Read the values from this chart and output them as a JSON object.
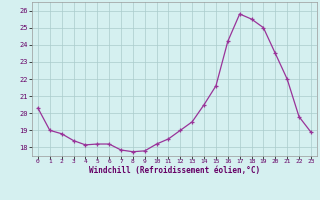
{
  "line_color": "#993399",
  "marker_color": "#993399",
  "bg_color": "#d5f0f0",
  "grid_color": "#aacccc",
  "xlabel": "Windchill (Refroidissement éolien,°C)",
  "ylim": [
    17.5,
    26.5
  ],
  "xlim": [
    -0.5,
    23.5
  ],
  "yticks": [
    18,
    19,
    20,
    21,
    22,
    23,
    24,
    25,
    26
  ],
  "xticks": [
    0,
    1,
    2,
    3,
    4,
    5,
    6,
    7,
    8,
    9,
    10,
    11,
    12,
    13,
    14,
    15,
    16,
    17,
    18,
    19,
    20,
    21,
    22,
    23
  ],
  "data_x": [
    0,
    1,
    2,
    3,
    4,
    5,
    6,
    7,
    8,
    9,
    10,
    11,
    12,
    13,
    14,
    15,
    16,
    17,
    18,
    19,
    20,
    21,
    22,
    23
  ],
  "data_y": [
    20.3,
    19.0,
    18.8,
    18.4,
    18.15,
    18.2,
    18.2,
    17.85,
    17.75,
    17.8,
    18.2,
    18.5,
    19.0,
    19.5,
    20.5,
    21.6,
    24.2,
    25.8,
    25.5,
    25.0,
    23.5,
    22.0,
    19.8,
    18.9
  ]
}
